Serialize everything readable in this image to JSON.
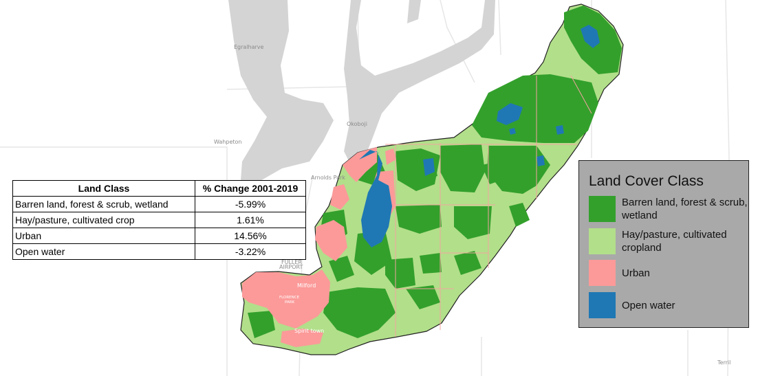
{
  "map": {
    "place_labels": {
      "egralharve": "Egralharve",
      "wahpeton": "Wahpeton",
      "okoboji": "Okoboji",
      "arnolds_park": "Arnolds Park",
      "fuller_airport": [
        "FULLER",
        "AIRPORT"
      ],
      "milford": "Milford",
      "florence_park": [
        "FLORENCE",
        "PARK"
      ],
      "spirit_town": "Spirit town",
      "terril": "Terril"
    }
  },
  "table": {
    "headers": [
      "Land Class",
      "% Change 2001-2019"
    ],
    "rows": [
      {
        "land_class": "Barren land, forest & scrub, wetland",
        "change": "-5.99%"
      },
      {
        "land_class": "Hay/pasture, cultivated crop",
        "change": "1.61%"
      },
      {
        "land_class": "Urban",
        "change": "14.56%"
      },
      {
        "land_class": "Open water",
        "change": "-3.22%"
      }
    ]
  },
  "legend": {
    "title": "Land Cover Class",
    "items": [
      {
        "label": "Barren land, forest & scrub, wetland",
        "color": "#33a02c"
      },
      {
        "label": "Hay/pasture, cultivated cropland",
        "color": "#b2df8a"
      },
      {
        "label": "Urban",
        "color": "#fb9a99"
      },
      {
        "label": "Open water",
        "color": "#1f78b4"
      }
    ]
  },
  "colors": {
    "lake": "#d4d4d4",
    "road": "#e6e6e6",
    "forest": "#33a02c",
    "crop": "#b2df8a",
    "urban": "#fb9a99",
    "water": "#1f78b4"
  }
}
